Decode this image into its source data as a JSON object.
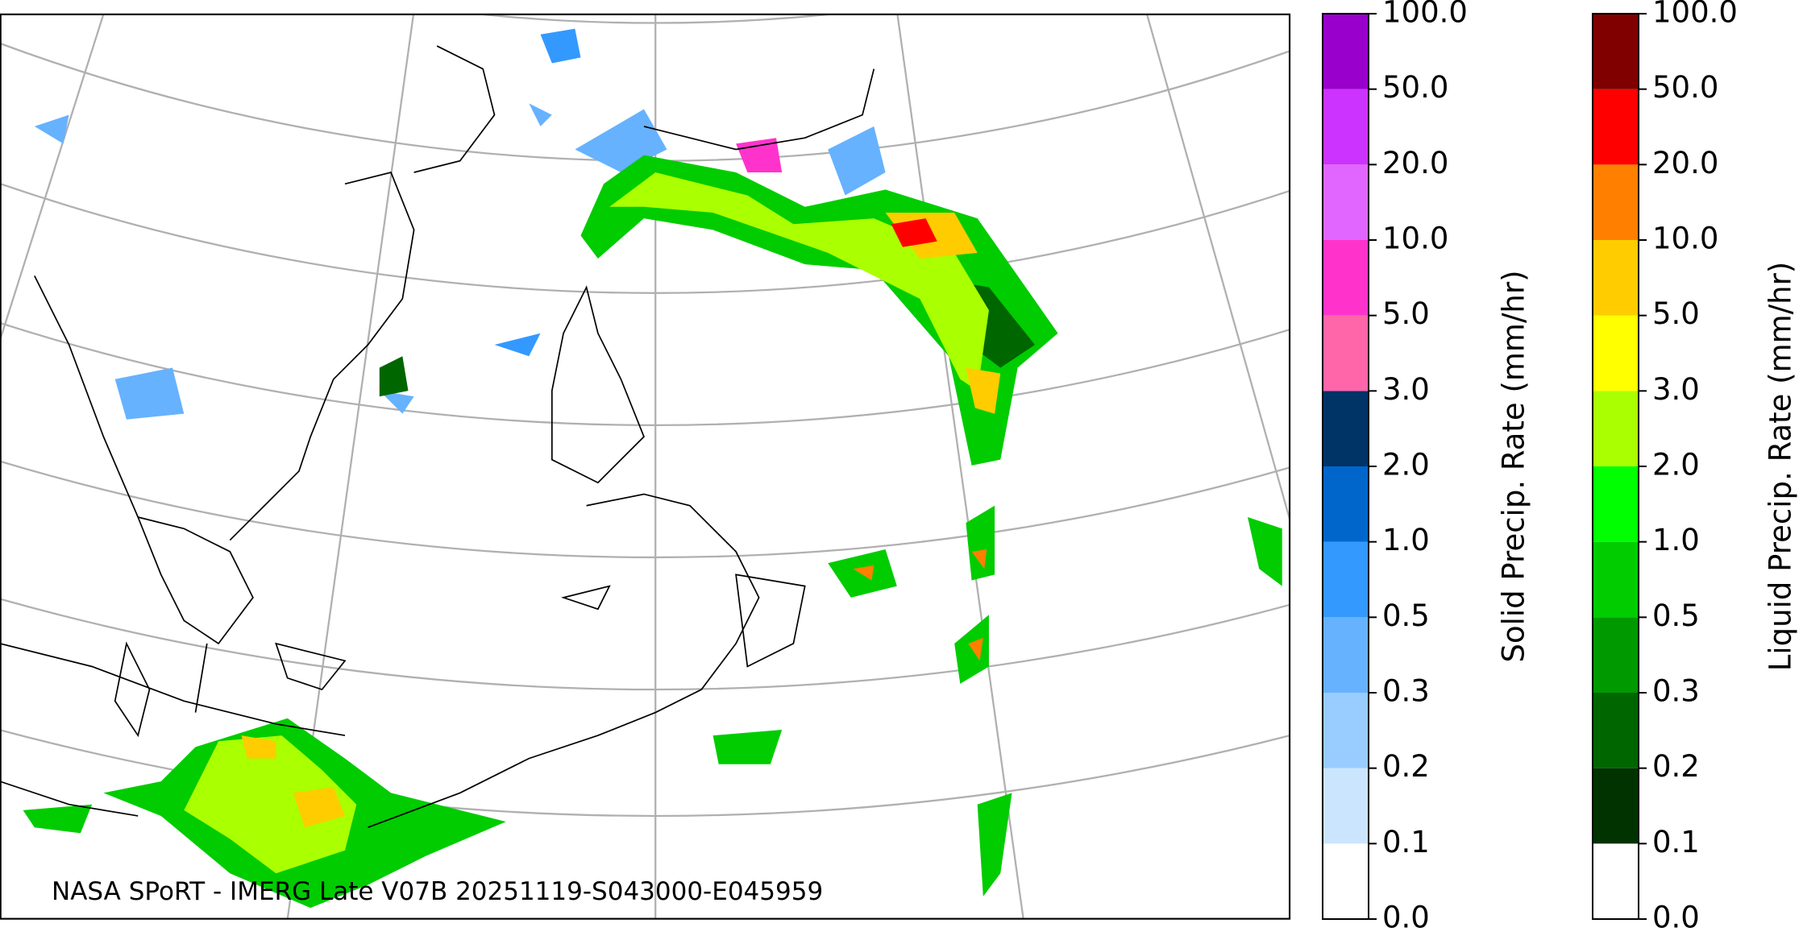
{
  "caption": "NASA SPoRT - IMERG Late V07B 20251119-S043000-E045959",
  "colorbars": [
    {
      "label": "Solid Precip. Rate (mm/hr)",
      "colors": [
        "#ffffff",
        "#cce5ff",
        "#99ccff",
        "#66b2ff",
        "#3399ff",
        "#0066cc",
        "#003366",
        "#ff66aa",
        "#ff33cc",
        "#e066ff",
        "#cc33ff",
        "#9900cc"
      ],
      "ticks": [
        {
          "value": 0,
          "label": "0.0"
        },
        {
          "value": 0.1,
          "label": "0.1"
        },
        {
          "value": 0.2,
          "label": "0.2"
        },
        {
          "value": 0.3,
          "label": "0.3"
        },
        {
          "value": 0.5,
          "label": "0.5"
        },
        {
          "value": 1,
          "label": "1.0"
        },
        {
          "value": 2,
          "label": "2.0"
        },
        {
          "value": 3,
          "label": "3.0"
        },
        {
          "value": 5,
          "label": "5.0"
        },
        {
          "value": 10,
          "label": "10.0"
        },
        {
          "value": 20,
          "label": "20.0"
        },
        {
          "value": 50,
          "label": "50.0"
        },
        {
          "value": 100,
          "label": "100.0"
        }
      ]
    },
    {
      "label": "Liquid Precip. Rate (mm/hr)",
      "colors": [
        "#ffffff",
        "#003300",
        "#006600",
        "#009900",
        "#00cc00",
        "#00ff00",
        "#aaff00",
        "#ffff00",
        "#ffcc00",
        "#ff8000",
        "#ff0000",
        "#800000",
        "#400000"
      ],
      "ticks": [
        {
          "value": 0,
          "label": "0.0"
        },
        {
          "value": 0.1,
          "label": "0.1"
        },
        {
          "value": 0.2,
          "label": "0.2"
        },
        {
          "value": 0.3,
          "label": "0.3"
        },
        {
          "value": 0.5,
          "label": "0.5"
        },
        {
          "value": 1,
          "label": "1.0"
        },
        {
          "value": 2,
          "label": "2.0"
        },
        {
          "value": 3,
          "label": "3.0"
        },
        {
          "value": 5,
          "label": "5.0"
        },
        {
          "value": 10,
          "label": "10.0"
        },
        {
          "value": 20,
          "label": "20.0"
        },
        {
          "value": 50,
          "label": "50.0"
        },
        {
          "value": 100,
          "label": "100.0"
        }
      ]
    }
  ]
}
